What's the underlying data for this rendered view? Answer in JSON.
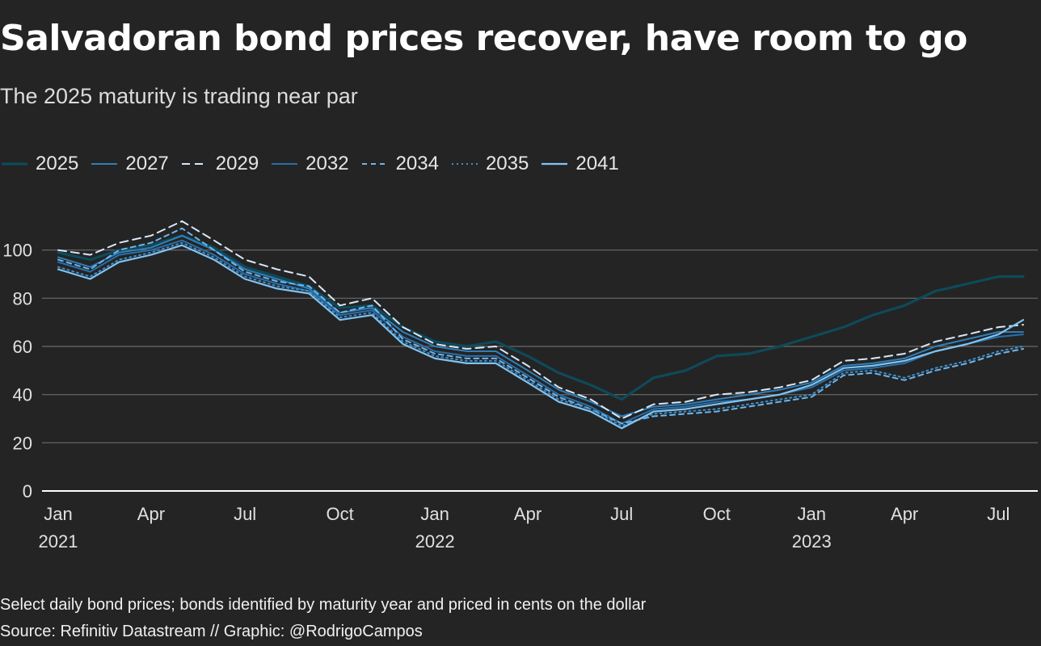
{
  "header": {
    "title": "Salvadoran bond prices recover, have room to go",
    "subtitle": "The 2025 maturity is trading near par"
  },
  "footer": {
    "note": "Select daily bond prices; bonds identified by maturity year and priced in cents on the dollar",
    "source": "Source: Refinitiv Datastream // Graphic: @RodrigoCampos"
  },
  "chart_data": {
    "type": "line",
    "title": "Salvadoran bond prices recover, have room to go",
    "subtitle": "The 2025 maturity is trading near par",
    "xlabel": "",
    "ylabel": "",
    "ylim": [
      0,
      120
    ],
    "yticks": [
      0,
      20,
      40,
      60,
      80,
      100
    ],
    "grid": true,
    "legend_position": "top-left",
    "x_range": [
      "2021-01-01",
      "2023-07-25"
    ],
    "xticks": [
      {
        "date": "2021-01-01",
        "label": "Jan",
        "year": "2021"
      },
      {
        "date": "2021-04-01",
        "label": "Apr",
        "year": ""
      },
      {
        "date": "2021-07-01",
        "label": "Jul",
        "year": ""
      },
      {
        "date": "2021-10-01",
        "label": "Oct",
        "year": ""
      },
      {
        "date": "2022-01-01",
        "label": "Jan",
        "year": "2022"
      },
      {
        "date": "2022-04-01",
        "label": "Apr",
        "year": ""
      },
      {
        "date": "2022-07-01",
        "label": "Jul",
        "year": ""
      },
      {
        "date": "2022-10-01",
        "label": "Oct",
        "year": ""
      },
      {
        "date": "2023-01-01",
        "label": "Jan",
        "year": "2023"
      },
      {
        "date": "2023-04-01",
        "label": "Apr",
        "year": ""
      },
      {
        "date": "2023-07-01",
        "label": "Jul",
        "year": ""
      }
    ],
    "x": [
      "2021-01-01",
      "2021-02-01",
      "2021-03-01",
      "2021-04-01",
      "2021-05-01",
      "2021-06-01",
      "2021-07-01",
      "2021-08-01",
      "2021-09-01",
      "2021-10-01",
      "2021-11-01",
      "2021-12-01",
      "2022-01-01",
      "2022-02-01",
      "2022-03-01",
      "2022-04-01",
      "2022-05-01",
      "2022-06-01",
      "2022-07-01",
      "2022-08-01",
      "2022-09-01",
      "2022-10-01",
      "2022-11-01",
      "2022-12-01",
      "2023-01-01",
      "2023-02-01",
      "2023-03-01",
      "2023-04-01",
      "2023-05-01",
      "2023-06-01",
      "2023-07-01",
      "2023-07-25"
    ],
    "series": [
      {
        "name": "2025",
        "color": "#0e4a5a",
        "width": 3.2,
        "dash": "",
        "values": [
          99,
          96,
          100,
          102,
          106,
          101,
          93,
          89,
          85,
          76,
          77,
          68,
          62,
          60,
          62,
          56,
          49,
          44,
          38,
          47,
          50,
          56,
          57,
          60,
          64,
          68,
          73,
          77,
          83,
          86,
          89,
          89
        ]
      },
      {
        "name": "2027",
        "color": "#2f7fba",
        "width": 2,
        "dash": "",
        "values": [
          97,
          93,
          99,
          101,
          106,
          100,
          92,
          88,
          84,
          74,
          76,
          66,
          60,
          58,
          58,
          50,
          42,
          37,
          31,
          35,
          36,
          38,
          40,
          42,
          45,
          52,
          53,
          55,
          60,
          63,
          66,
          66
        ]
      },
      {
        "name": "2029",
        "color": "#d8e8f8",
        "width": 2,
        "dash": "10,6",
        "values": [
          100,
          98,
          103,
          106,
          112,
          104,
          96,
          92,
          89,
          77,
          80,
          68,
          61,
          59,
          60,
          52,
          43,
          38,
          30,
          36,
          37,
          40,
          41,
          43,
          46,
          54,
          55,
          57,
          62,
          65,
          68,
          69
        ]
      },
      {
        "name": "2032",
        "color": "#2a6fa8",
        "width": 2,
        "dash": "",
        "values": [
          95,
          91,
          98,
          100,
          104,
          98,
          90,
          86,
          83,
          73,
          75,
          64,
          58,
          56,
          56,
          48,
          40,
          35,
          28,
          34,
          35,
          37,
          38,
          40,
          43,
          50,
          51,
          53,
          58,
          61,
          64,
          65
        ]
      },
      {
        "name": "2034",
        "color": "#6cb6ee",
        "width": 2,
        "dash": "6,5",
        "values": [
          96,
          92,
          100,
          103,
          109,
          100,
          91,
          87,
          85,
          74,
          77,
          63,
          57,
          55,
          55,
          47,
          39,
          34,
          28,
          31,
          32,
          33,
          35,
          37,
          39,
          48,
          49,
          46,
          50,
          53,
          57,
          59
        ]
      },
      {
        "name": "2035",
        "color": "#3d8fcc",
        "width": 2,
        "dash": "2,4",
        "values": [
          93,
          89,
          96,
          99,
          103,
          97,
          89,
          85,
          83,
          72,
          74,
          62,
          56,
          54,
          54,
          46,
          38,
          34,
          27,
          32,
          33,
          34,
          36,
          38,
          40,
          49,
          50,
          47,
          51,
          54,
          58,
          60
        ]
      },
      {
        "name": "2041",
        "color": "#7fc4f4",
        "width": 2.2,
        "dash": "",
        "values": [
          92,
          88,
          95,
          98,
          102,
          96,
          88,
          84,
          82,
          71,
          73,
          61,
          55,
          53,
          53,
          45,
          37,
          33,
          26,
          33,
          34,
          36,
          38,
          40,
          44,
          51,
          52,
          54,
          58,
          61,
          65,
          71
        ]
      }
    ]
  }
}
